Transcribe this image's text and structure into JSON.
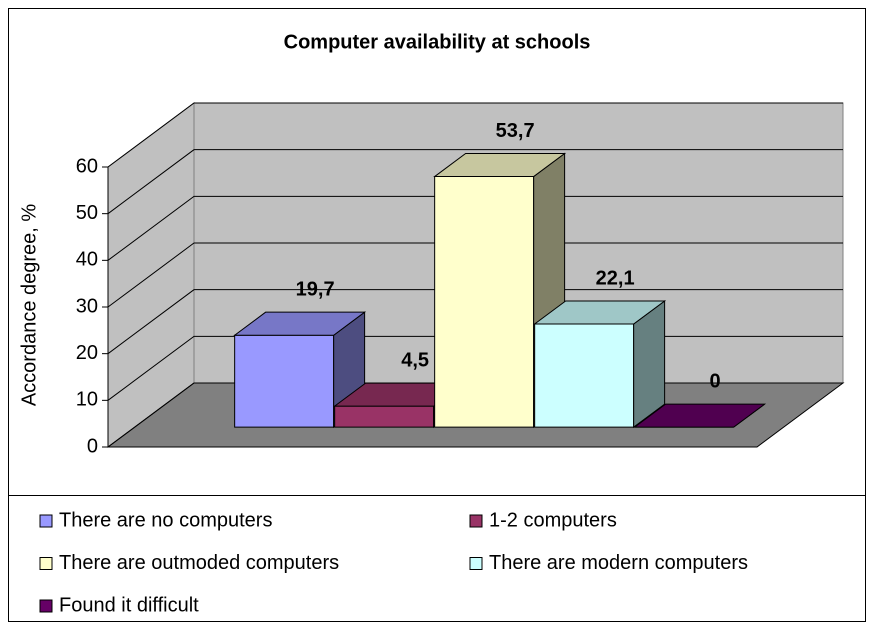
{
  "chart_data": {
    "type": "bar3d",
    "title": "Computer availability at schools",
    "ylabel": "Accordance degree, %",
    "ylim": [
      0,
      60
    ],
    "yticks": [
      0,
      10,
      20,
      30,
      40,
      50,
      60
    ],
    "grid": true,
    "series": [
      {
        "name": "There are no computers",
        "color": "#9999ff",
        "values": [
          19.7
        ],
        "value_labels": [
          "19,7"
        ]
      },
      {
        "name": "1-2 computers",
        "color": "#993366",
        "values": [
          4.5
        ],
        "value_labels": [
          "4,5"
        ]
      },
      {
        "name": "There are outmoded computers",
        "color": "#ffffcc",
        "values": [
          53.7
        ],
        "value_labels": [
          "53,7"
        ]
      },
      {
        "name": "There are modern computers",
        "color": "#ccffff",
        "values": [
          22.1
        ],
        "value_labels": [
          "22,1"
        ]
      },
      {
        "name": "Found it difficult",
        "color": "#660066",
        "values": [
          0
        ]
      }
    ]
  }
}
